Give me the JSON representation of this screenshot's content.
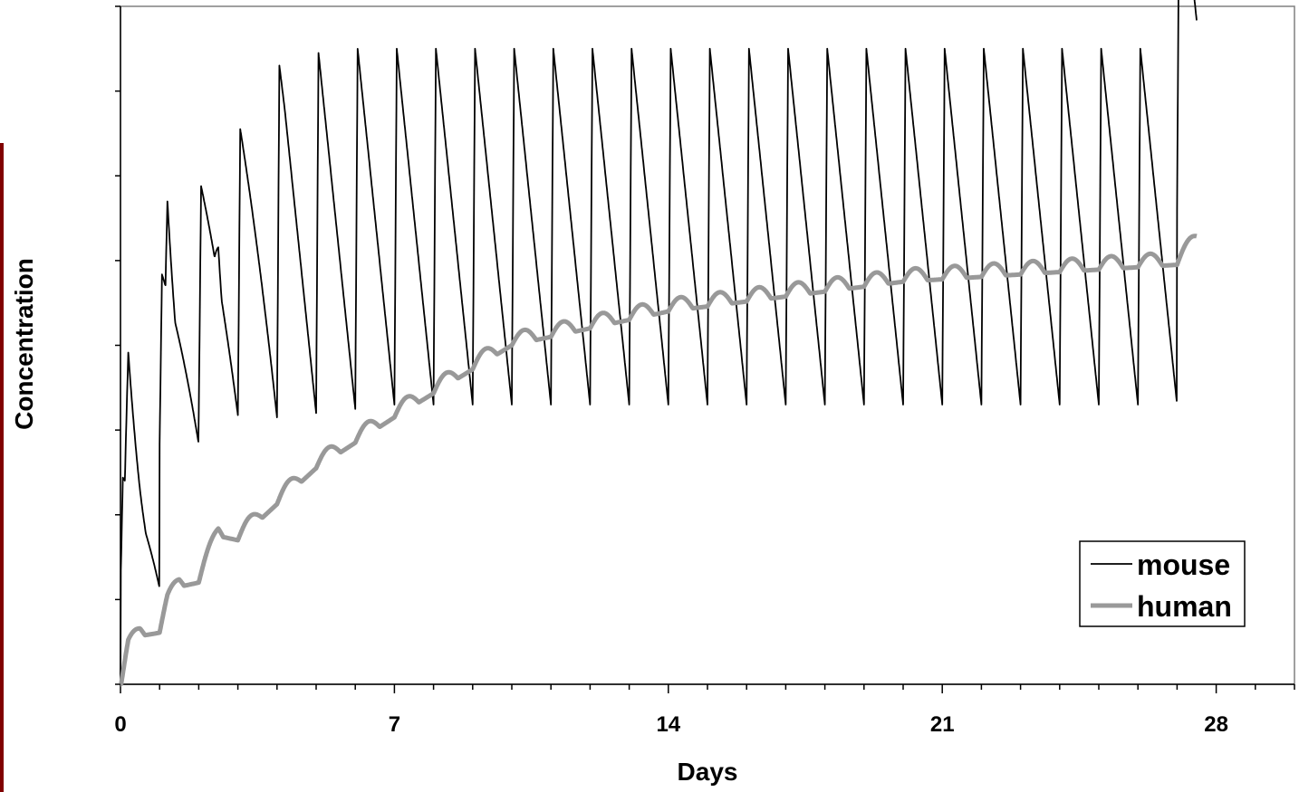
{
  "chart_data": {
    "type": "line",
    "title": "",
    "xlabel": "Days",
    "ylabel": "Concentration",
    "xlim": [
      0,
      30
    ],
    "ylim": [
      0,
      8
    ],
    "x_ticks": [
      0,
      7,
      14,
      21,
      28
    ],
    "x_tick_labels": [
      "0",
      "7",
      "14",
      "21",
      "28"
    ],
    "y_tick_labels_shown": false,
    "grid": false,
    "legend_position": "bottom-right",
    "dosing_interval_days": 1,
    "sample_times_days": [
      0,
      0.2,
      0.5,
      0.9,
      1.0,
      1.2,
      1.5,
      2.0,
      2.5,
      3.0,
      5.0,
      7.0,
      10.0,
      14.0,
      20.0,
      27.0,
      27.5
    ],
    "series": [
      {
        "name": "mouse",
        "color": "#000000",
        "values": [
          0,
          4.4,
          3.3,
          2.1,
          1.03,
          6.2,
          4.5,
          2.8,
          6.9,
          3.1,
          3.2,
          3.3,
          3.3,
          3.3,
          3.3,
          3.3,
          5.6
        ]
      },
      {
        "name": "human",
        "color": "#999999",
        "values": [
          0,
          0.45,
          0.62,
          0.65,
          0.66,
          0.98,
          1.2,
          1.25,
          1.8,
          1.75,
          2.6,
          3.2,
          4.05,
          4.45,
          4.8,
          5.0,
          5.25
        ]
      }
    ]
  },
  "legend": {
    "items": [
      {
        "label": "mouse",
        "color": "#000000"
      },
      {
        "label": "human",
        "color": "#999999"
      }
    ]
  },
  "decor": {
    "left_bar_color": "#800000"
  }
}
